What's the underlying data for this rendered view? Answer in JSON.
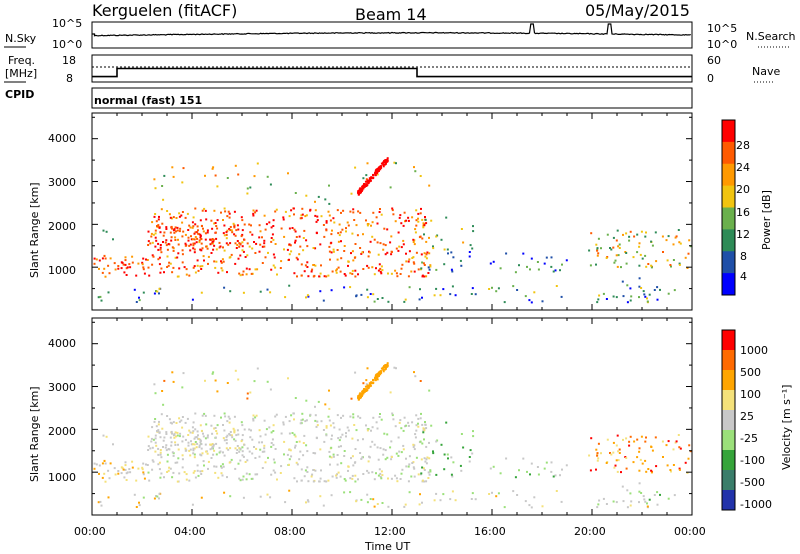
{
  "header": {
    "radar": "Kerguelen (fitACF)",
    "beam": "Beam 14",
    "date": "05/May/2015"
  },
  "noise_panel": {
    "left_label": "N.Sky",
    "right_label": "N.Search",
    "left_ticks": [
      "10^5",
      "10^0"
    ],
    "right_ticks": [
      "10^5",
      "10^0"
    ]
  },
  "freq_panel": {
    "left_label_1": "Freq.",
    "left_label_2": "[MHz]",
    "right_label": "Nave",
    "left_ticks": [
      "18",
      "8"
    ],
    "right_ticks": [
      "60",
      "0"
    ],
    "cpid_label": "CPID",
    "cpid_text": "normal (fast) 151"
  },
  "power_panel": {
    "ylabel": "Slant Range [km]",
    "y_ticks": [
      "4000",
      "3000",
      "2000",
      "1000"
    ],
    "colorbar_label": "Power [dB]",
    "colorbar_ticks": [
      "28",
      "24",
      "20",
      "16",
      "12",
      "8",
      "4"
    ],
    "colors": [
      "#0000ff",
      "#1f4fa8",
      "#2e8b57",
      "#6ab04c",
      "#f1c40f",
      "#ff9900",
      "#ff5a00",
      "#ff0000"
    ]
  },
  "velocity_panel": {
    "ylabel": "Slant Range [km]",
    "y_ticks": [
      "4000",
      "3000",
      "2000",
      "1000"
    ],
    "colorbar_label": "Velocity [m s⁻¹]",
    "colorbar_ticks": [
      "1000",
      "500",
      "100",
      "25",
      "-25",
      "-100",
      "-500",
      "-1000"
    ],
    "colors": [
      "#2233aa",
      "#3a7d6a",
      "#35a43a",
      "#9be07a",
      "#c8c8c8",
      "#f4e17a",
      "#ffa500",
      "#ff6a00",
      "#ff0000"
    ]
  },
  "x_axis": {
    "ticks": [
      "00:00",
      "04:00",
      "08:00",
      "12:00",
      "16:00",
      "20:00",
      "00:00"
    ],
    "label": "Time UT"
  },
  "chart_data": [
    {
      "type": "line",
      "name": "noise",
      "x_range_hours": [
        0,
        24
      ],
      "y_scale": "log",
      "spikes_at_hours": [
        17.6,
        20.7
      ]
    },
    {
      "type": "line",
      "name": "frequency",
      "x_range_hours": [
        0,
        24
      ],
      "ylim": [
        8,
        18
      ],
      "segments": [
        {
          "from": 0,
          "to": 1.0,
          "value": 10
        },
        {
          "from": 1.0,
          "to": 13.0,
          "value": 13
        },
        {
          "from": 13.0,
          "to": 24,
          "value": 10
        }
      ]
    },
    {
      "type": "heatmap",
      "name": "power",
      "x_range_hours": [
        0,
        24
      ],
      "ylim": [
        0,
        4600
      ],
      "units": "dB",
      "clim": [
        0,
        30
      ]
    },
    {
      "type": "heatmap",
      "name": "velocity",
      "x_range_hours": [
        0,
        24
      ],
      "ylim": [
        0,
        4600
      ],
      "units": "m/s",
      "clim": [
        -1000,
        1000
      ]
    }
  ]
}
